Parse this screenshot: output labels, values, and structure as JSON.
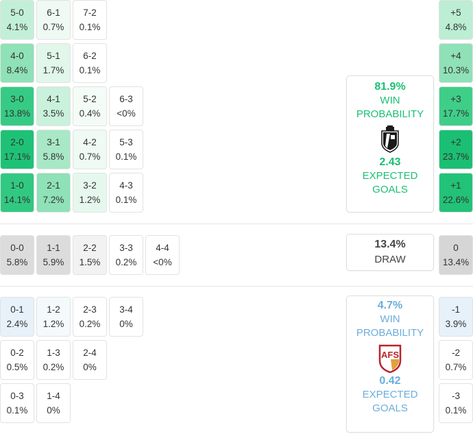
{
  "colors": {
    "home_accent": "#1bbf73",
    "away_accent": "#6aaedb",
    "draw_text": "#444444"
  },
  "home": {
    "rows": [
      [
        {
          "s": "5-0",
          "p": "4.1%",
          "c": "#c2efd8"
        },
        {
          "s": "6-1",
          "p": "0.7%",
          "c": "#eefaf3"
        },
        {
          "s": "7-2",
          "p": "0.1%",
          "c": "#ffffff"
        }
      ],
      [
        {
          "s": "4-0",
          "p": "8.4%",
          "c": "#8fe1b7"
        },
        {
          "s": "5-1",
          "p": "1.7%",
          "c": "#e0f7ea"
        },
        {
          "s": "6-2",
          "p": "0.1%",
          "c": "#ffffff"
        }
      ],
      [
        {
          "s": "3-0",
          "p": "13.8%",
          "c": "#36cb84"
        },
        {
          "s": "4-1",
          "p": "3.5%",
          "c": "#c9f1dc"
        },
        {
          "s": "5-2",
          "p": "0.4%",
          "c": "#f4fcf7"
        },
        {
          "s": "6-3",
          "p": "<0%",
          "c": "#ffffff"
        }
      ],
      [
        {
          "s": "2-0",
          "p": "17.1%",
          "c": "#1ec276"
        },
        {
          "s": "3-1",
          "p": "5.8%",
          "c": "#a8e8c6"
        },
        {
          "s": "4-2",
          "p": "0.7%",
          "c": "#eefaf3"
        },
        {
          "s": "5-3",
          "p": "0.1%",
          "c": "#ffffff"
        }
      ],
      [
        {
          "s": "1-0",
          "p": "14.1%",
          "c": "#31c981"
        },
        {
          "s": "2-1",
          "p": "7.2%",
          "c": "#8fe1b7"
        },
        {
          "s": "3-2",
          "p": "1.2%",
          "c": "#e6f8ee"
        },
        {
          "s": "4-3",
          "p": "0.1%",
          "c": "#ffffff"
        }
      ]
    ],
    "margins": [
      {
        "m": "+5",
        "p": "4.8%",
        "c": "#bbeed3"
      },
      {
        "m": "+4",
        "p": "10.3%",
        "c": "#8fe1b7"
      },
      {
        "m": "+3",
        "p": "17.7%",
        "c": "#3fce88"
      },
      {
        "m": "+2",
        "p": "23.7%",
        "c": "#1bbf73"
      },
      {
        "m": "+1",
        "p": "22.6%",
        "c": "#22c278"
      }
    ],
    "win_pct": "81.9%",
    "win_label_1": "WIN",
    "win_label_2": "PROBABILITY",
    "xg": "2.43",
    "xg_label_1": "EXPECTED",
    "xg_label_2": "GOALS",
    "logo_icon": "vitoria-guimaraes-crest-icon"
  },
  "draw": {
    "cells": [
      {
        "s": "0-0",
        "p": "5.8%",
        "c": "#dcdcdc"
      },
      {
        "s": "1-1",
        "p": "5.9%",
        "c": "#dcdcdc"
      },
      {
        "s": "2-2",
        "p": "1.5%",
        "c": "#f2f2f2"
      },
      {
        "s": "3-3",
        "p": "0.2%",
        "c": "#ffffff"
      },
      {
        "s": "4-4",
        "p": "<0%",
        "c": "#ffffff"
      }
    ],
    "pct": "13.4%",
    "label": "DRAW",
    "margin": {
      "m": "0",
      "p": "13.4%",
      "c": "#d6d6d6"
    }
  },
  "away": {
    "rows": [
      [
        {
          "s": "0-1",
          "p": "2.4%",
          "c": "#e6f1fa"
        },
        {
          "s": "1-2",
          "p": "1.2%",
          "c": "#f4f9fc"
        },
        {
          "s": "2-3",
          "p": "0.2%",
          "c": "#ffffff"
        },
        {
          "s": "3-4",
          "p": "0%",
          "c": "#ffffff"
        }
      ],
      [
        {
          "s": "0-2",
          "p": "0.5%",
          "c": "#ffffff"
        },
        {
          "s": "1-3",
          "p": "0.2%",
          "c": "#ffffff"
        },
        {
          "s": "2-4",
          "p": "0%",
          "c": "#ffffff"
        }
      ],
      [
        {
          "s": "0-3",
          "p": "0.1%",
          "c": "#ffffff"
        },
        {
          "s": "1-4",
          "p": "0%",
          "c": "#ffffff"
        }
      ]
    ],
    "margins": [
      {
        "m": "-1",
        "p": "3.9%",
        "c": "#e6f1fa"
      },
      {
        "m": "-2",
        "p": "0.7%",
        "c": "#ffffff"
      },
      {
        "m": "-3",
        "p": "0.1%",
        "c": "#ffffff"
      }
    ],
    "win_pct": "4.7%",
    "win_label_1": "WIN",
    "win_label_2": "PROBABILITY",
    "xg": "0.42",
    "xg_label_1": "EXPECTED",
    "xg_label_2": "GOALS",
    "logo_icon": "afs-crest-icon"
  }
}
